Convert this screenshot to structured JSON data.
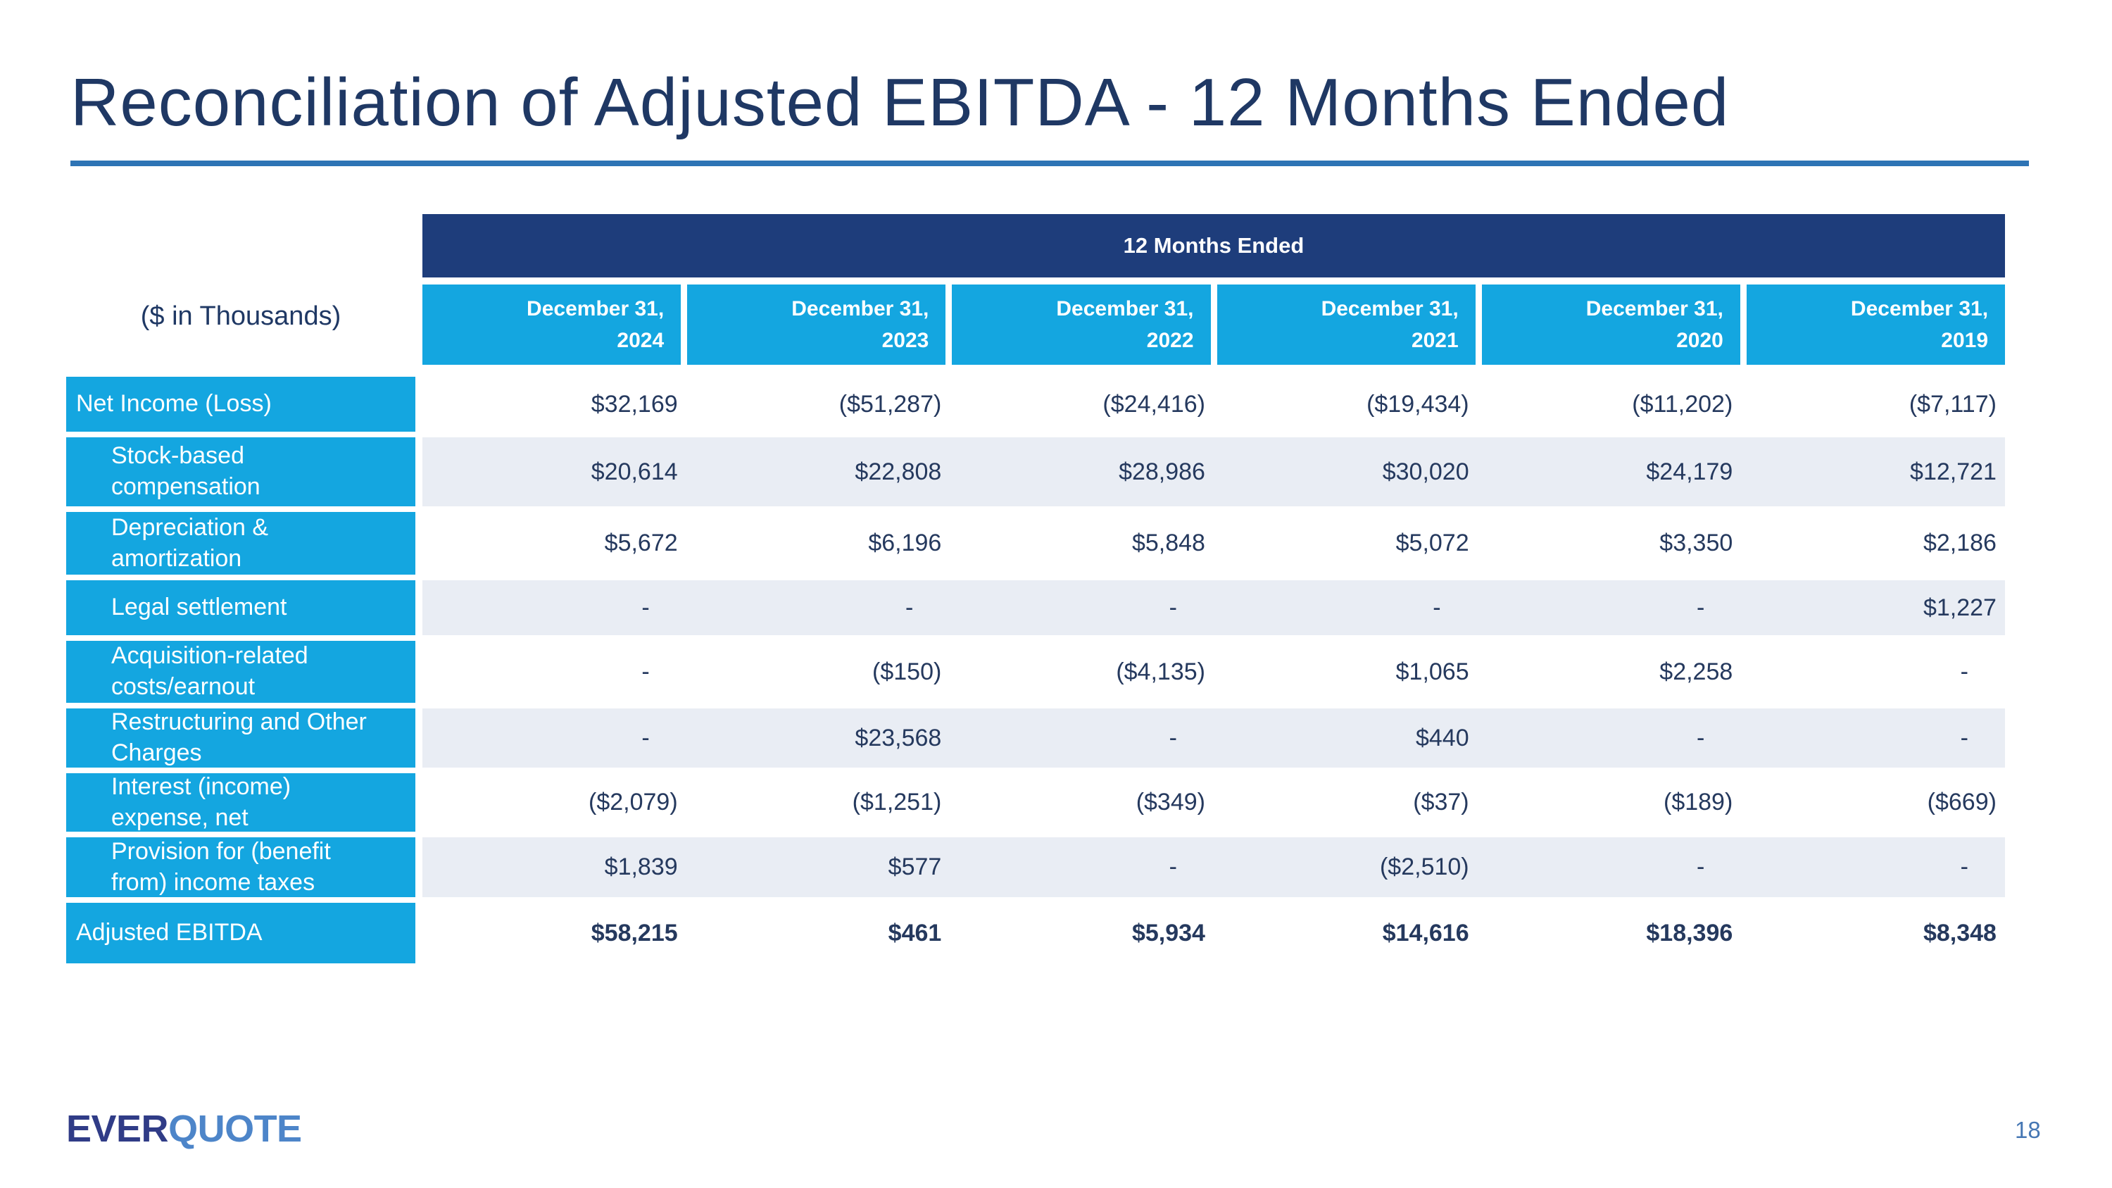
{
  "slide": {
    "title": "Reconciliation of Adjusted EBITDA - 12 Months Ended",
    "page_number": "18",
    "logo": {
      "part1": "EVER",
      "part2": "QUOTE"
    }
  },
  "table": {
    "units_label": "($ in Thousands)",
    "group_header": "12 Months Ended",
    "columns": [
      {
        "line1": "December 31,",
        "line2": "2024"
      },
      {
        "line1": "December 31,",
        "line2": "2023"
      },
      {
        "line1": "December 31,",
        "line2": "2022"
      },
      {
        "line1": "December 31,",
        "line2": "2021"
      },
      {
        "line1": "December 31,",
        "line2": "2020"
      },
      {
        "line1": "December 31,",
        "line2": "2019"
      }
    ],
    "rows": [
      {
        "label": "Net Income (Loss)",
        "indent": false,
        "shaded": false,
        "bold_values": false,
        "values": [
          "$32,169",
          "($51,287)",
          "($24,416)",
          "($19,434)",
          "($11,202)",
          "($7,117)"
        ]
      },
      {
        "label": "Stock-based\ncompensation",
        "indent": true,
        "shaded": true,
        "bold_values": false,
        "values": [
          "$20,614",
          "$22,808",
          "$28,986",
          "$30,020",
          "$24,179",
          "$12,721"
        ]
      },
      {
        "label": "Depreciation &\namortization",
        "indent": true,
        "shaded": false,
        "bold_values": false,
        "values": [
          "$5,672",
          "$6,196",
          "$5,848",
          "$5,072",
          "$3,350",
          "$2,186"
        ]
      },
      {
        "label": "Legal settlement",
        "indent": true,
        "shaded": true,
        "bold_values": false,
        "values": [
          "-",
          "-",
          "-",
          "-",
          "-",
          "$1,227"
        ]
      },
      {
        "label": "Acquisition-related\ncosts/earnout",
        "indent": true,
        "shaded": false,
        "bold_values": false,
        "values": [
          "-",
          "($150)",
          "($4,135)",
          "$1,065",
          "$2,258",
          "-"
        ]
      },
      {
        "label": "Restructuring and Other\nCharges",
        "indent": true,
        "shaded": true,
        "bold_values": false,
        "values": [
          "-",
          "$23,568",
          "-",
          "$440",
          "-",
          "-"
        ]
      },
      {
        "label": "Interest (income)\nexpense, net",
        "indent": true,
        "shaded": false,
        "bold_values": false,
        "values": [
          "($2,079)",
          "($1,251)",
          "($349)",
          "($37)",
          "($189)",
          "($669)"
        ]
      },
      {
        "label": "Provision for (benefit\nfrom) income taxes",
        "indent": true,
        "shaded": true,
        "bold_values": false,
        "values": [
          "$1,839",
          "$577",
          "-",
          "($2,510)",
          "-",
          "-"
        ]
      },
      {
        "label": "Adjusted EBITDA",
        "indent": false,
        "shaded": false,
        "bold_values": true,
        "values": [
          "$58,215",
          "$461",
          "$5,934",
          "$14,616",
          "$18,396",
          "$8,348"
        ]
      }
    ],
    "colors": {
      "header_navy": "#1e3d7b",
      "label_cyan": "#14a6e0",
      "shaded_row": "#e9edf4",
      "value_text": "#25395e",
      "title_text": "#1f3864",
      "underline_blue": "#2e74b5"
    }
  }
}
